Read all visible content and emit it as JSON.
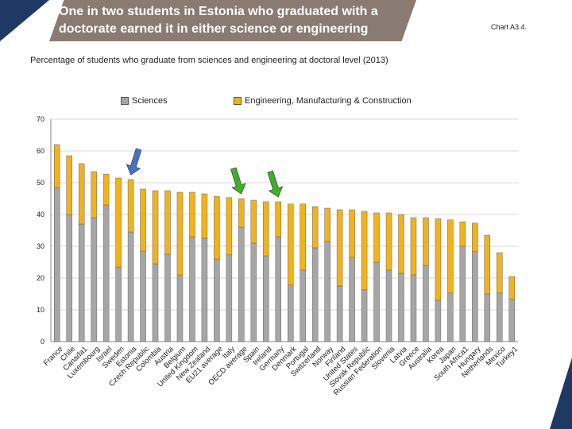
{
  "header": {
    "title": "One in two students in Estonia who graduated with a doctorate earned it in either science or engineering",
    "chart_ref": "Chart A3.4."
  },
  "chart_data": {
    "type": "bar",
    "stacked": true,
    "title": "Percentage of students who graduate from sciences and engineering at doctoral level (2013)",
    "categories": [
      "France",
      "Chile",
      "Canada1",
      "Luxembourg",
      "Israel",
      "Sweden",
      "Estonia",
      "Czech Republic",
      "Colombia",
      "Austria",
      "Belgium",
      "United Kingdom",
      "New Zealand",
      "EU21 average",
      "Italy",
      "OECD average",
      "Spain",
      "Ireland",
      "Germany",
      "Denmark",
      "Portugal",
      "Switzerland",
      "Norway",
      "Finland",
      "United States",
      "Slovak Republic",
      "Russian Federation",
      "Slovenia",
      "Latvia",
      "Greece",
      "Australia",
      "Korea",
      "Japan",
      "South Africa1",
      "Hungary",
      "Netherlands",
      "Mexico",
      "Turkey1"
    ],
    "series": [
      {
        "name": "Sciences",
        "color": "#a6a6a6",
        "values": [
          48.5,
          40,
          37,
          39,
          43,
          23.5,
          34.5,
          28.5,
          24.5,
          27.5,
          21,
          33,
          32.5,
          26,
          27.3,
          36,
          31,
          27,
          33,
          17.8,
          22.5,
          29.5,
          31.5,
          17.5,
          26.5,
          16.3,
          25,
          22.5,
          21.5,
          21,
          24,
          13,
          15.3,
          30,
          28.3,
          15,
          15.3,
          13.3
        ]
      },
      {
        "name": "Engineering, Manufacturing & Construction",
        "color": "#f2b21b",
        "values": [
          13.5,
          18.5,
          19,
          14.5,
          9.7,
          28,
          16.5,
          19.5,
          23,
          20,
          26,
          14,
          14,
          19.7,
          18,
          9,
          13.5,
          17,
          11,
          25.5,
          20.8,
          13,
          10.5,
          24,
          15,
          24.7,
          15.5,
          18,
          18.5,
          18,
          15,
          25.7,
          23,
          7.7,
          9,
          18.5,
          12.7,
          7.2
        ]
      }
    ],
    "ylim": [
      0,
      70
    ],
    "yticks": [
      0,
      10,
      20,
      30,
      40,
      50,
      60,
      70
    ],
    "gridlines": true,
    "annotations": [
      {
        "type": "arrow",
        "color": "#4472c4",
        "target": "Estonia"
      },
      {
        "type": "arrow",
        "color": "#3fae2a",
        "target": "OECD average"
      },
      {
        "type": "arrow",
        "color": "#3fae2a",
        "target": "Germany"
      }
    ]
  }
}
